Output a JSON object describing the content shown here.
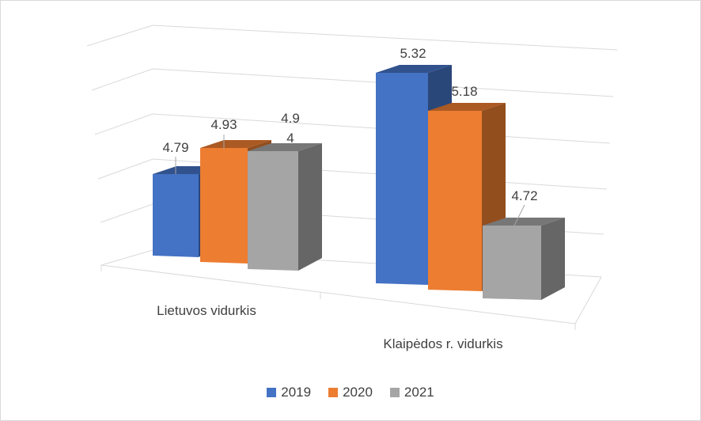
{
  "chart_data": {
    "type": "bar",
    "style": "3d-clustered-column",
    "categories": [
      "Lietuvos vidurkis",
      "Klaipėdos r. vidurkis"
    ],
    "series": [
      {
        "name": "2019",
        "color": "#4472C4",
        "values": [
          4.79,
          5.32
        ]
      },
      {
        "name": "2020",
        "color": "#ED7D31",
        "values": [
          4.93,
          5.18
        ]
      },
      {
        "name": "2021",
        "color": "#A5A5A5",
        "values": [
          4.94,
          4.72
        ]
      }
    ],
    "data_labels": [
      [
        "4.79",
        "5.32"
      ],
      [
        "4.93",
        "5.18"
      ],
      [
        "4.9\n4",
        "4.72"
      ]
    ],
    "legend_position": "bottom",
    "grid": true
  }
}
